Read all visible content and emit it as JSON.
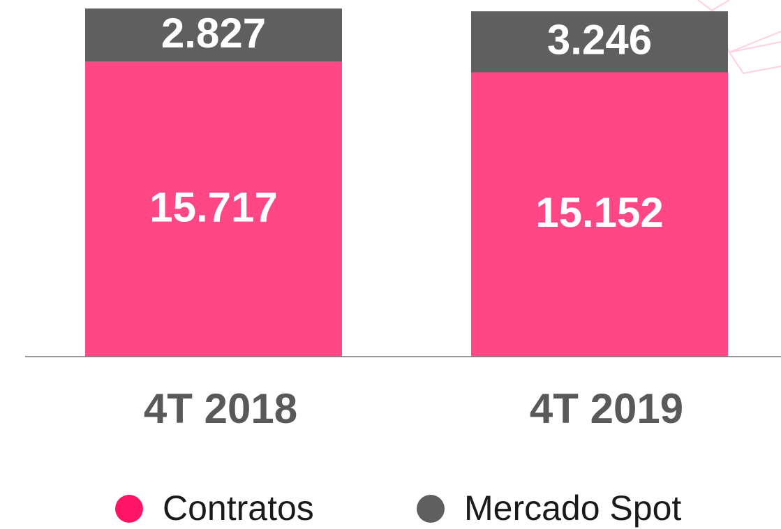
{
  "chart_data": {
    "type": "stacked-bar",
    "categories": [
      "4T 2018",
      "4T 2019"
    ],
    "series": [
      {
        "name": "Contratos",
        "color": "#ff4785",
        "values": [
          15717,
          15152
        ],
        "value_labels": [
          "15.717",
          "15.152"
        ]
      },
      {
        "name": "Mercado Spot",
        "color": "#5f5f5f",
        "values": [
          2827,
          3246
        ],
        "value_labels": [
          "2.827",
          "3.246"
        ]
      }
    ],
    "legend_colors": [
      "#ff1466",
      "#5f5f5f"
    ],
    "ylim": [
      0,
      19000
    ]
  }
}
